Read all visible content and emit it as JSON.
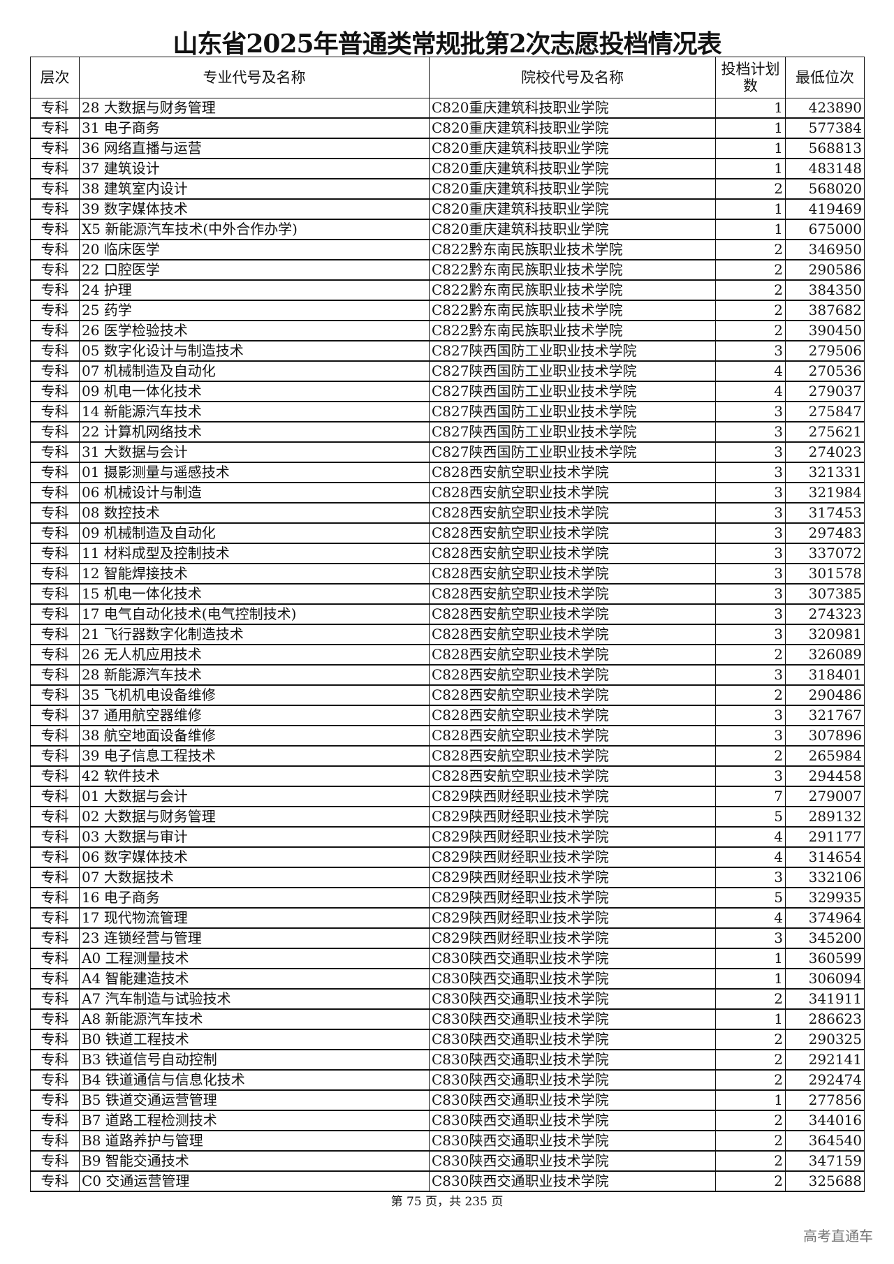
{
  "title": "山东省2025年普通类常规批第2次志愿投档情况表",
  "headers": [
    "层次",
    "专业代号及名称",
    "院校代号及名称",
    "投档计划数",
    "最低位次"
  ],
  "rows": [
    [
      "专科",
      "28 大数据与财务管理",
      "C820重庆建筑科技职业学院",
      "1",
      "423890"
    ],
    [
      "专科",
      "31 电子商务",
      "C820重庆建筑科技职业学院",
      "1",
      "577384"
    ],
    [
      "专科",
      "36 网络直播与运营",
      "C820重庆建筑科技职业学院",
      "1",
      "568813"
    ],
    [
      "专科",
      "37 建筑设计",
      "C820重庆建筑科技职业学院",
      "1",
      "483148"
    ],
    [
      "专科",
      "38 建筑室内设计",
      "C820重庆建筑科技职业学院",
      "2",
      "568020"
    ],
    [
      "专科",
      "39 数字媒体技术",
      "C820重庆建筑科技职业学院",
      "1",
      "419469"
    ],
    [
      "专科",
      "X5 新能源汽车技术(中外合作办学)",
      "C820重庆建筑科技职业学院",
      "1",
      "675000"
    ],
    [
      "专科",
      "20 临床医学",
      "C822黔东南民族职业技术学院",
      "2",
      "346950"
    ],
    [
      "专科",
      "22 口腔医学",
      "C822黔东南民族职业技术学院",
      "2",
      "290586"
    ],
    [
      "专科",
      "24 护理",
      "C822黔东南民族职业技术学院",
      "2",
      "384350"
    ],
    [
      "专科",
      "25 药学",
      "C822黔东南民族职业技术学院",
      "2",
      "387682"
    ],
    [
      "专科",
      "26 医学检验技术",
      "C822黔东南民族职业技术学院",
      "2",
      "390450"
    ],
    [
      "专科",
      "05 数字化设计与制造技术",
      "C827陕西国防工业职业技术学院",
      "3",
      "279506"
    ],
    [
      "专科",
      "07 机械制造及自动化",
      "C827陕西国防工业职业技术学院",
      "4",
      "270536"
    ],
    [
      "专科",
      "09 机电一体化技术",
      "C827陕西国防工业职业技术学院",
      "4",
      "279037"
    ],
    [
      "专科",
      "14 新能源汽车技术",
      "C827陕西国防工业职业技术学院",
      "3",
      "275847"
    ],
    [
      "专科",
      "22 计算机网络技术",
      "C827陕西国防工业职业技术学院",
      "3",
      "275621"
    ],
    [
      "专科",
      "31 大数据与会计",
      "C827陕西国防工业职业技术学院",
      "3",
      "274023"
    ],
    [
      "专科",
      "01 摄影测量与遥感技术",
      "C828西安航空职业技术学院",
      "3",
      "321331"
    ],
    [
      "专科",
      "06 机械设计与制造",
      "C828西安航空职业技术学院",
      "3",
      "321984"
    ],
    [
      "专科",
      "08 数控技术",
      "C828西安航空职业技术学院",
      "3",
      "317453"
    ],
    [
      "专科",
      "09 机械制造及自动化",
      "C828西安航空职业技术学院",
      "3",
      "297483"
    ],
    [
      "专科",
      "11 材料成型及控制技术",
      "C828西安航空职业技术学院",
      "3",
      "337072"
    ],
    [
      "专科",
      "12 智能焊接技术",
      "C828西安航空职业技术学院",
      "3",
      "301578"
    ],
    [
      "专科",
      "15 机电一体化技术",
      "C828西安航空职业技术学院",
      "3",
      "307385"
    ],
    [
      "专科",
      "17 电气自动化技术(电气控制技术)",
      "C828西安航空职业技术学院",
      "3",
      "274323"
    ],
    [
      "专科",
      "21 飞行器数字化制造技术",
      "C828西安航空职业技术学院",
      "3",
      "320981"
    ],
    [
      "专科",
      "26 无人机应用技术",
      "C828西安航空职业技术学院",
      "2",
      "326089"
    ],
    [
      "专科",
      "28 新能源汽车技术",
      "C828西安航空职业技术学院",
      "3",
      "318401"
    ],
    [
      "专科",
      "35 飞机机电设备维修",
      "C828西安航空职业技术学院",
      "2",
      "290486"
    ],
    [
      "专科",
      "37 通用航空器维修",
      "C828西安航空职业技术学院",
      "3",
      "321767"
    ],
    [
      "专科",
      "38 航空地面设备维修",
      "C828西安航空职业技术学院",
      "3",
      "307896"
    ],
    [
      "专科",
      "39 电子信息工程技术",
      "C828西安航空职业技术学院",
      "2",
      "265984"
    ],
    [
      "专科",
      "42 软件技术",
      "C828西安航空职业技术学院",
      "3",
      "294458"
    ],
    [
      "专科",
      "01 大数据与会计",
      "C829陕西财经职业技术学院",
      "7",
      "279007"
    ],
    [
      "专科",
      "02 大数据与财务管理",
      "C829陕西财经职业技术学院",
      "5",
      "289132"
    ],
    [
      "专科",
      "03 大数据与审计",
      "C829陕西财经职业技术学院",
      "4",
      "291177"
    ],
    [
      "专科",
      "06 数字媒体技术",
      "C829陕西财经职业技术学院",
      "4",
      "314654"
    ],
    [
      "专科",
      "07 大数据技术",
      "C829陕西财经职业技术学院",
      "3",
      "332106"
    ],
    [
      "专科",
      "16 电子商务",
      "C829陕西财经职业技术学院",
      "5",
      "329935"
    ],
    [
      "专科",
      "17 现代物流管理",
      "C829陕西财经职业技术学院",
      "4",
      "374964"
    ],
    [
      "专科",
      "23 连锁经营与管理",
      "C829陕西财经职业技术学院",
      "3",
      "345200"
    ],
    [
      "专科",
      "A0 工程测量技术",
      "C830陕西交通职业技术学院",
      "1",
      "360599"
    ],
    [
      "专科",
      "A4 智能建造技术",
      "C830陕西交通职业技术学院",
      "1",
      "306094"
    ],
    [
      "专科",
      "A7 汽车制造与试验技术",
      "C830陕西交通职业技术学院",
      "2",
      "341911"
    ],
    [
      "专科",
      "A8 新能源汽车技术",
      "C830陕西交通职业技术学院",
      "1",
      "286623"
    ],
    [
      "专科",
      "B0 铁道工程技术",
      "C830陕西交通职业技术学院",
      "2",
      "290325"
    ],
    [
      "专科",
      "B3 铁道信号自动控制",
      "C830陕西交通职业技术学院",
      "2",
      "292141"
    ],
    [
      "专科",
      "B4 铁道通信与信息化技术",
      "C830陕西交通职业技术学院",
      "2",
      "292474"
    ],
    [
      "专科",
      "B5 铁道交通运营管理",
      "C830陕西交通职业技术学院",
      "1",
      "277856"
    ],
    [
      "专科",
      "B7 道路工程检测技术",
      "C830陕西交通职业技术学院",
      "2",
      "344016"
    ],
    [
      "专科",
      "B8 道路养护与管理",
      "C830陕西交通职业技术学院",
      "2",
      "364540"
    ],
    [
      "专科",
      "B9 智能交通技术",
      "C830陕西交通职业技术学院",
      "2",
      "347159"
    ],
    [
      "专科",
      "C0 交通运营管理",
      "C830陕西交通职业技术学院",
      "2",
      "325688"
    ]
  ],
  "footer": "第 75 页，共 235 页",
  "watermark": "高考直通车"
}
